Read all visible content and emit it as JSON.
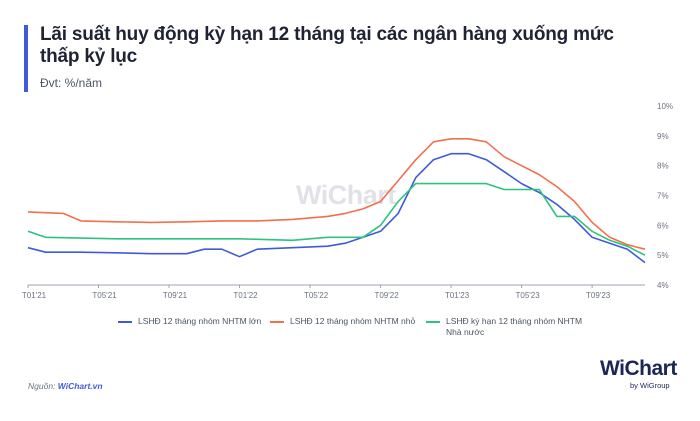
{
  "header": {
    "title": "Lãi suất huy động kỳ hạn 12 tháng tại các ngân hàng xuống mức thấp kỷ lục",
    "subtitle": "Đvt: %/năm"
  },
  "footer": {
    "source_label": "Nguồn:",
    "source_value": "WiChart.vn"
  },
  "branding": {
    "logo_text": "WiChart",
    "logo_sub": "by WiGroup",
    "watermark": "WiChart"
  },
  "chart_data": {
    "type": "line",
    "title": "",
    "xlabel": "",
    "ylabel": "",
    "x_ticks": [
      "T01'21",
      "T05'21",
      "T09'21",
      "T01'22",
      "T05'22",
      "T09'22",
      "T01'23",
      "T05'23",
      "T09'23"
    ],
    "x_range": [
      "2021-01",
      "2023-12"
    ],
    "ylim": [
      4,
      10
    ],
    "y_ticks": [
      "4%",
      "5%",
      "6%",
      "7%",
      "8%",
      "9%",
      "10%"
    ],
    "y_axis_position": "right",
    "grid": false,
    "legend_position": "bottom",
    "colors": {
      "series_1": "#3f5bd9",
      "series_2": "#f07050",
      "series_3": "#2ec27e"
    },
    "series": [
      {
        "name": "LSHĐ 12 tháng nhóm NHTM lớn",
        "color": "#3f5bd9",
        "points": [
          [
            "2021-01",
            5.25
          ],
          [
            "2021-02",
            5.1
          ],
          [
            "2021-04",
            5.1
          ],
          [
            "2021-06",
            5.08
          ],
          [
            "2021-08",
            5.05
          ],
          [
            "2021-10",
            5.05
          ],
          [
            "2021-11",
            5.2
          ],
          [
            "2021-12",
            5.2
          ],
          [
            "2022-01",
            4.95
          ],
          [
            "2022-02",
            5.2
          ],
          [
            "2022-04",
            5.25
          ],
          [
            "2022-06",
            5.3
          ],
          [
            "2022-07",
            5.4
          ],
          [
            "2022-08",
            5.6
          ],
          [
            "2022-09",
            5.8
          ],
          [
            "2022-10",
            6.4
          ],
          [
            "2022-11",
            7.6
          ],
          [
            "2022-12",
            8.2
          ],
          [
            "2023-01",
            8.4
          ],
          [
            "2023-02",
            8.4
          ],
          [
            "2023-03",
            8.2
          ],
          [
            "2023-04",
            7.8
          ],
          [
            "2023-05",
            7.4
          ],
          [
            "2023-06",
            7.1
          ],
          [
            "2023-07",
            6.7
          ],
          [
            "2023-08",
            6.2
          ],
          [
            "2023-09",
            5.6
          ],
          [
            "2023-10",
            5.4
          ],
          [
            "2023-11",
            5.2
          ],
          [
            "2023-12",
            4.75
          ]
        ]
      },
      {
        "name": "LSHĐ 12 tháng nhóm NHTM nhỏ",
        "color": "#f07050",
        "points": [
          [
            "2021-01",
            6.45
          ],
          [
            "2021-03",
            6.4
          ],
          [
            "2021-04",
            6.15
          ],
          [
            "2021-06",
            6.12
          ],
          [
            "2021-08",
            6.1
          ],
          [
            "2021-10",
            6.12
          ],
          [
            "2021-12",
            6.15
          ],
          [
            "2022-02",
            6.15
          ],
          [
            "2022-04",
            6.2
          ],
          [
            "2022-06",
            6.3
          ],
          [
            "2022-07",
            6.4
          ],
          [
            "2022-08",
            6.55
          ],
          [
            "2022-09",
            6.8
          ],
          [
            "2022-10",
            7.5
          ],
          [
            "2022-11",
            8.2
          ],
          [
            "2022-12",
            8.8
          ],
          [
            "2023-01",
            8.9
          ],
          [
            "2023-02",
            8.9
          ],
          [
            "2023-03",
            8.8
          ],
          [
            "2023-04",
            8.3
          ],
          [
            "2023-05",
            8.0
          ],
          [
            "2023-06",
            7.7
          ],
          [
            "2023-07",
            7.3
          ],
          [
            "2023-08",
            6.8
          ],
          [
            "2023-09",
            6.1
          ],
          [
            "2023-10",
            5.6
          ],
          [
            "2023-11",
            5.35
          ],
          [
            "2023-12",
            5.2
          ]
        ]
      },
      {
        "name": "LSHĐ kỳ hạn 12 tháng nhóm NHTM Nhà nước",
        "color": "#2ec27e",
        "points": [
          [
            "2021-01",
            5.8
          ],
          [
            "2021-02",
            5.6
          ],
          [
            "2021-06",
            5.55
          ],
          [
            "2021-10",
            5.55
          ],
          [
            "2022-01",
            5.55
          ],
          [
            "2022-04",
            5.5
          ],
          [
            "2022-06",
            5.6
          ],
          [
            "2022-08",
            5.6
          ],
          [
            "2022-09",
            6.0
          ],
          [
            "2022-10",
            6.8
          ],
          [
            "2022-11",
            7.4
          ],
          [
            "2023-03",
            7.4
          ],
          [
            "2023-04",
            7.2
          ],
          [
            "2023-06",
            7.2
          ],
          [
            "2023-07",
            6.3
          ],
          [
            "2023-08",
            6.3
          ],
          [
            "2023-09",
            5.8
          ],
          [
            "2023-10",
            5.5
          ],
          [
            "2023-11",
            5.3
          ],
          [
            "2023-12",
            5.0
          ]
        ]
      }
    ]
  }
}
